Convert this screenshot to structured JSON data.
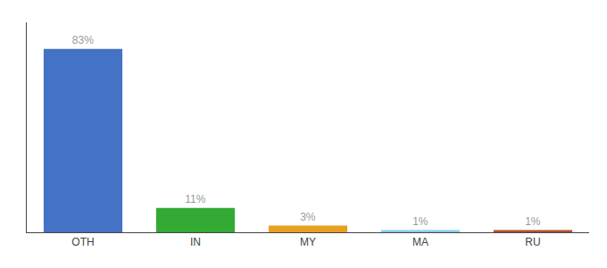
{
  "chart_data": {
    "type": "bar",
    "categories": [
      "OTH",
      "IN",
      "MY",
      "MA",
      "RU"
    ],
    "values": [
      83,
      11,
      3,
      1,
      1
    ],
    "value_labels": [
      "83%",
      "11%",
      "3%",
      "1%",
      "1%"
    ],
    "colors": [
      "#4472c4",
      "#33aa33",
      "#e8a020",
      "#88ccee",
      "#b05030"
    ],
    "ylim": [
      0,
      95
    ],
    "data_labels": true,
    "tick_labels": "x",
    "grid": false
  }
}
